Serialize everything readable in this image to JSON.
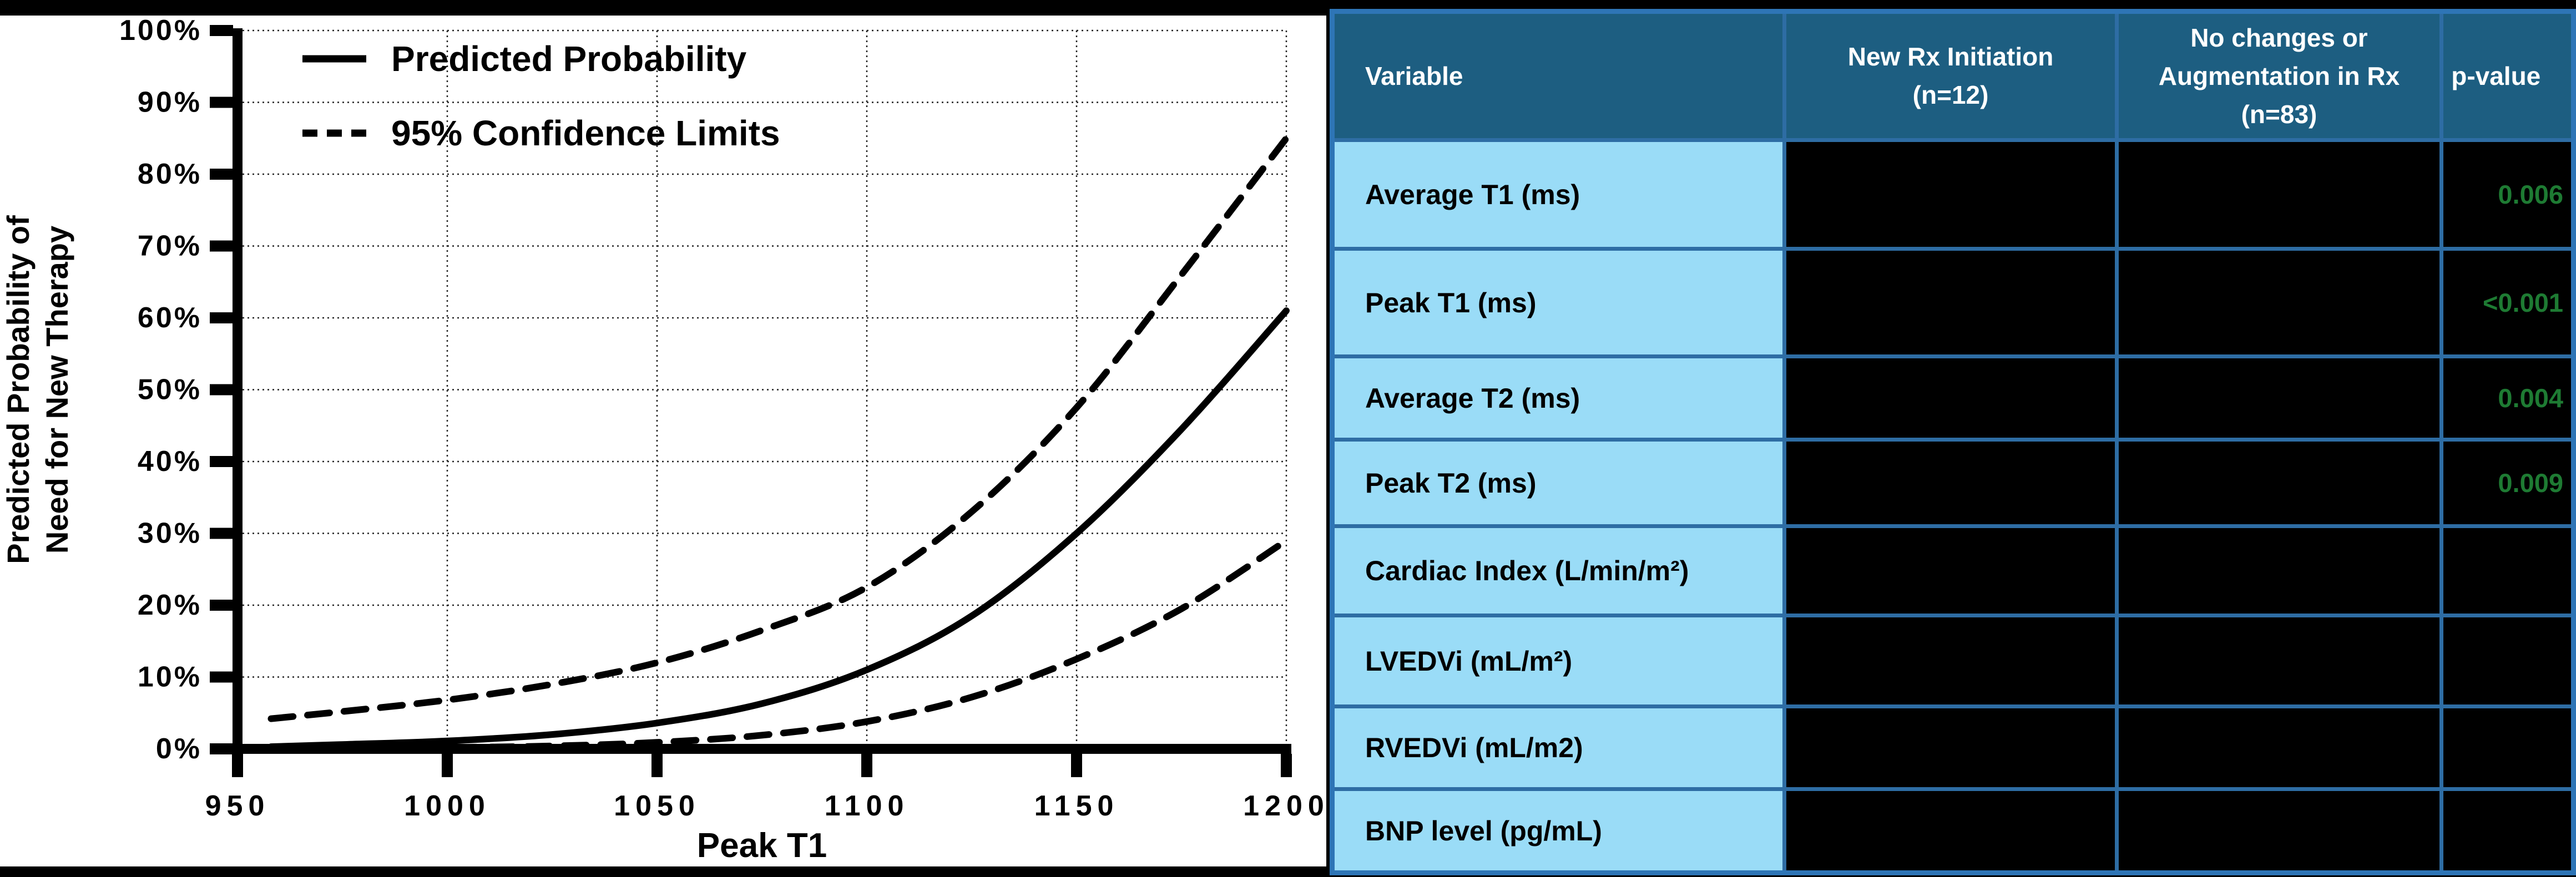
{
  "colors": {
    "canvas_bg": "#000000",
    "chart_bg": "#FFFFFF",
    "curve_color": "#000000",
    "header_bg": "#1D5E81",
    "header_text": "#FFFFFF",
    "row_label_bg": "#9ADCF7",
    "row_label_text": "#000000",
    "inner_border": "#2E6DA4",
    "outer_border": "#2E75B6",
    "p_value_green": "#1E7B33",
    "redacted_cell": "#000000"
  },
  "chart_data": {
    "type": "line",
    "title": "",
    "xlabel": "Peak T1",
    "ylabel_lines": [
      "Predicted Probability of",
      "Need for New Therapy"
    ],
    "xlim": [
      950,
      1200
    ],
    "ylim": [
      0,
      100
    ],
    "x_ticks": [
      950,
      1000,
      1050,
      1100,
      1150,
      1200
    ],
    "y_ticks_percent": [
      0,
      10,
      20,
      30,
      40,
      50,
      60,
      70,
      80,
      90,
      100
    ],
    "grid": "dotted",
    "legend_position": "top-left-inside",
    "x": [
      958,
      975,
      1000,
      1025,
      1050,
      1075,
      1100,
      1125,
      1150,
      1175,
      1200
    ],
    "series": [
      {
        "name": "Predicted Probability",
        "style": "solid",
        "values": [
          0.3,
          0.6,
          1.1,
          2.0,
          3.6,
          6.3,
          11,
          18.5,
          30,
          44.5,
          61
        ]
      },
      {
        "name": "95% Confidence Limit (upper)",
        "style": "dashed",
        "values": [
          4.2,
          5.2,
          6.8,
          9.0,
          12,
          16.5,
          22.5,
          33,
          47.5,
          66,
          85
        ]
      },
      {
        "name": "95% Confidence Limit (lower)",
        "style": "dashed",
        "values": [
          0.05,
          0.1,
          0.2,
          0.4,
          0.9,
          1.9,
          3.8,
          7.2,
          12.5,
          19.5,
          29
        ]
      }
    ],
    "legend": [
      {
        "style": "solid",
        "label": "Predicted Probability"
      },
      {
        "style": "dashed",
        "label": "95% Confidence Limits"
      }
    ]
  },
  "table": {
    "headers": [
      {
        "label": "Variable"
      },
      {
        "label": "New Rx Initiation\n(n=12)"
      },
      {
        "label": "No changes or\nAugmentation in Rx\n(n=83)"
      },
      {
        "label": "p-value"
      }
    ],
    "rows": [
      {
        "variable": "Average T1 (ms)",
        "new_rx": "",
        "no_changes": "",
        "p_value": "0.006"
      },
      {
        "variable": "Peak T1 (ms)",
        "new_rx": "",
        "no_changes": "",
        "p_value": "<0.001"
      },
      {
        "variable": "Average T2 (ms)",
        "new_rx": "",
        "no_changes": "",
        "p_value": "0.004"
      },
      {
        "variable": "Peak T2 (ms)",
        "new_rx": "",
        "no_changes": "",
        "p_value": "0.009"
      },
      {
        "variable": "Cardiac Index (L/min/m²)",
        "new_rx": "",
        "no_changes": "",
        "p_value": ""
      },
      {
        "variable": "LVEDVi (mL/m²)",
        "new_rx": "",
        "no_changes": "",
        "p_value": ""
      },
      {
        "variable": "RVEDVi (mL/m2)",
        "new_rx": "",
        "no_changes": "",
        "p_value": ""
      },
      {
        "variable": "BNP level (pg/mL)",
        "new_rx": "",
        "no_changes": "",
        "p_value": ""
      }
    ]
  }
}
